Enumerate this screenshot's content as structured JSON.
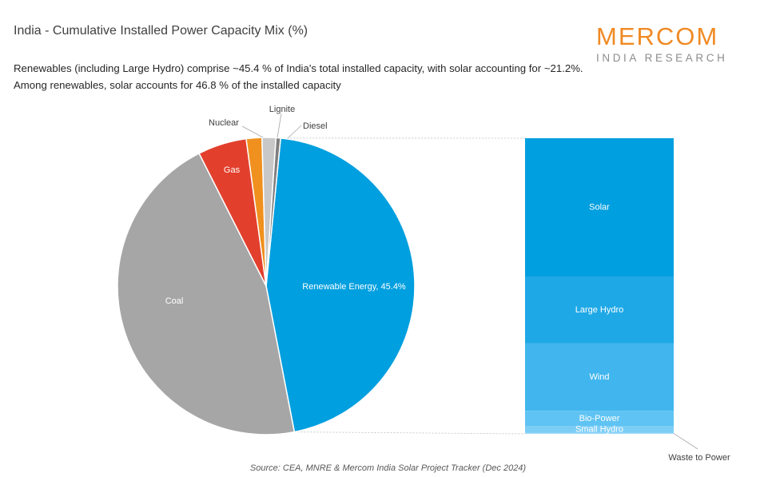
{
  "title": "India - Cumulative Installed Power Capacity Mix (%)",
  "subtitle_line1": "Renewables (including Large Hydro) comprise ~45.4 % of India's total installed capacity, with solar accounting for ~21.2%.",
  "subtitle_line2": "Among renewables, solar accounts for 46.8 % of the installed capacity",
  "logo": {
    "main": "MERCOM",
    "sub": "INDIA RESEARCH"
  },
  "source": "Source: CEA, MNRE & Mercom India Solar Project Tracker (Dec 2024)",
  "colors": {
    "accent": "#f08a24"
  },
  "chart_data": [
    {
      "type": "pie",
      "title": "",
      "slices": [
        {
          "name": "Renewable Energy",
          "label": "Renewable Energy, 45.4%",
          "value": 45.4,
          "color": "#009fdf",
          "label_color": "#ffffff"
        },
        {
          "name": "Coal",
          "label": "Coal",
          "value": 45.6,
          "color": "#a6a6a6",
          "label_color": "#ffffff"
        },
        {
          "name": "Gas",
          "label": "Gas",
          "value": 5.3,
          "color": "#e2402d",
          "label_color": "#ffffff"
        },
        {
          "name": "Nuclear",
          "label": "Nuclear",
          "value": 1.7,
          "color": "#f0901e",
          "label_color": "#404040"
        },
        {
          "name": "Lignite",
          "label": "Lignite",
          "value": 1.5,
          "color": "#c8c8c8",
          "label_color": "#404040"
        },
        {
          "name": "Diesel",
          "label": "Diesel",
          "value": 0.5,
          "color": "#7f7f7f",
          "label_color": "#404040"
        }
      ]
    },
    {
      "type": "bar",
      "stacked": true,
      "title": "",
      "categories": [
        "Solar",
        "Large Hydro",
        "Wind",
        "Bio-Power",
        "Small Hydro",
        "Waste to Power"
      ],
      "values": [
        46.8,
        22.7,
        22.8,
        5.1,
        2.4,
        0.3
      ],
      "colors": [
        "#009fdf",
        "#1fa8e6",
        "#41b6ee",
        "#5fc3f3",
        "#7ccdf6",
        "#a0daf9"
      ]
    }
  ]
}
